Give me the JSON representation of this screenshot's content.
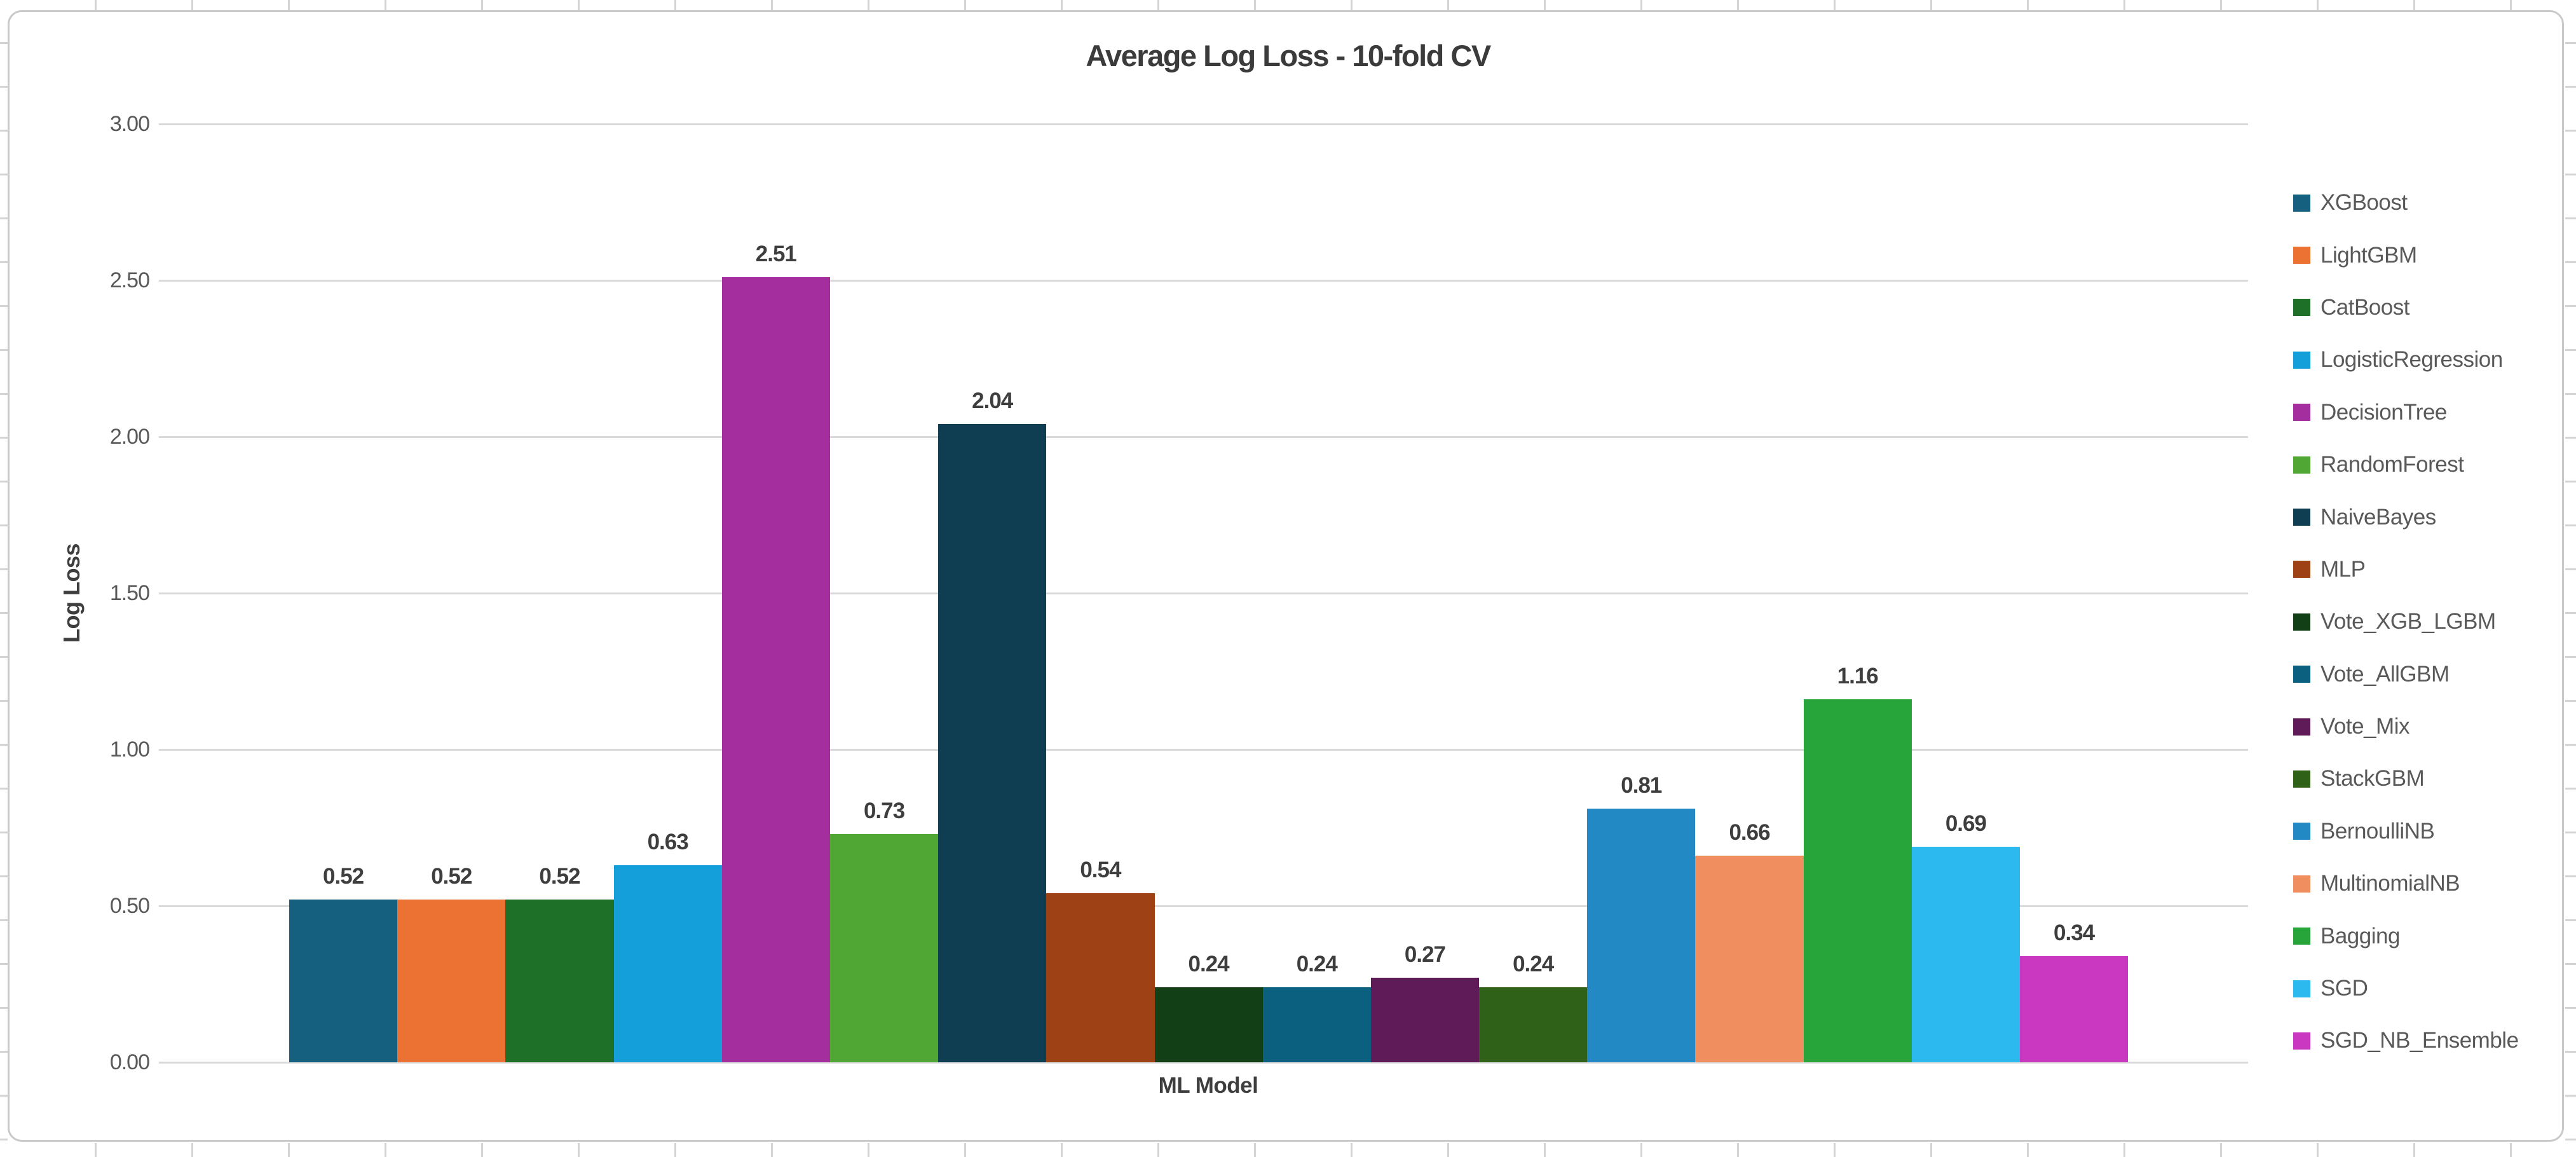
{
  "frame": {
    "background": "#ffffff",
    "border_color": "#c9c9c9",
    "spreadsheet_gridline_color": "#d4d4d4"
  },
  "chart_data": {
    "type": "bar",
    "title": "Average Log Loss - 10-fold CV",
    "xlabel": "ML Model",
    "ylabel": "Log Loss",
    "ylim": [
      0,
      3.0
    ],
    "ytick_step": 0.5,
    "yticks": [
      "3.00",
      "2.50",
      "2.00",
      "1.50",
      "1.00",
      "0.50",
      "0.00"
    ],
    "grid": "horizontal",
    "gridline_color": "#d9d9d9",
    "legend_position": "right",
    "categories": [
      "XGBoost",
      "LightGBM",
      "CatBoost",
      "LogisticRegression",
      "DecisionTree",
      "RandomForest",
      "NaiveBayes",
      "MLP",
      "Vote_XGB_LGBM",
      "Vote_AllGBM",
      "Vote_Mix",
      "StackGBM",
      "BernoulliNB",
      "MultinomialNB",
      "Bagging",
      "SGD",
      "SGD_NB_Ensemble"
    ],
    "values": [
      0.52,
      0.52,
      0.52,
      0.63,
      2.51,
      0.73,
      2.04,
      0.54,
      0.24,
      0.24,
      0.27,
      0.24,
      0.81,
      0.66,
      1.16,
      0.69,
      0.34
    ],
    "value_labels": [
      "0.52",
      "0.52",
      "0.52",
      "0.63",
      "2.51",
      "0.73",
      "2.04",
      "0.54",
      "0.24",
      "0.24",
      "0.27",
      "0.24",
      "0.81",
      "0.66",
      "1.16",
      "0.69",
      "0.34"
    ],
    "colors": [
      "#16607f",
      "#ec7234",
      "#1e6f27",
      "#149fdb",
      "#a42e9d",
      "#50a733",
      "#0f3d52",
      "#9e4114",
      "#133f17",
      "#0b5f7f",
      "#5e1b58",
      "#2f6218",
      "#2289c4",
      "#f08e60",
      "#28a53a",
      "#2cb9f0",
      "#ca37c0"
    ],
    "data_label_color": "#3e3e3e",
    "axis_title_color": "#3e3e3e",
    "tick_label_color": "#595959",
    "legend_text_color": "#595959"
  }
}
